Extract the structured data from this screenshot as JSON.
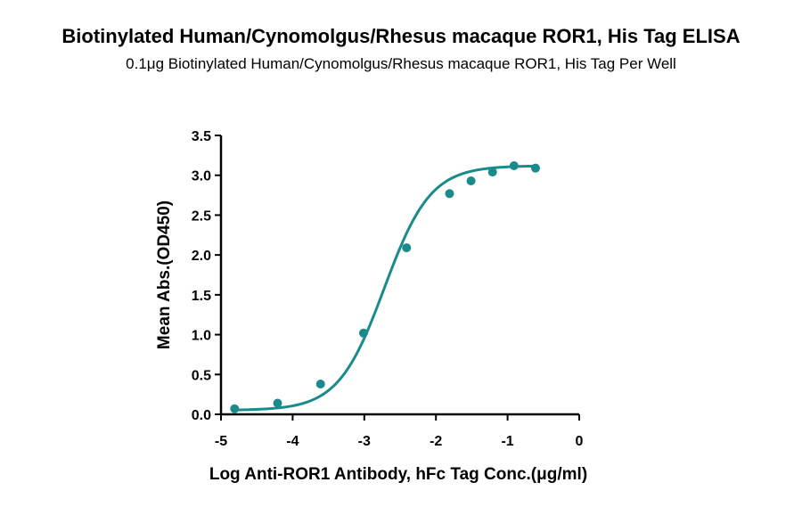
{
  "header": {
    "title": "Biotinylated Human/Cynomolgus/Rhesus macaque ROR1, His Tag ELISA",
    "subtitle": "0.1μg Biotinylated Human/Cynomolgus/Rhesus macaque ROR1, His Tag Per Well"
  },
  "chart_data": {
    "type": "scatter",
    "title": "Biotinylated Human/Cynomolgus/Rhesus macaque ROR1, His Tag ELISA",
    "subtitle": "0.1μg Biotinylated Human/Cynomolgus/Rhesus macaque ROR1, His Tag Per Well",
    "xlabel": "Log Anti-ROR1 Antibody, hFc  Tag Conc.(μg/ml)",
    "ylabel": "Mean Abs.(OD450)",
    "xlim": [
      -5,
      0
    ],
    "ylim": [
      0,
      3.5
    ],
    "x_ticks": [
      -5,
      -4,
      -3,
      -2,
      -1,
      0
    ],
    "x_tick_labels": [
      "-5",
      "-4",
      "-3",
      "-2",
      "-1",
      "0"
    ],
    "y_ticks": [
      0,
      0.5,
      1,
      1.5,
      2,
      2.5,
      3,
      3.5
    ],
    "y_tick_labels": [
      "0.0",
      "0.5",
      "1.0",
      "1.5",
      "2.0",
      "2.5",
      "3.0",
      "3.5"
    ],
    "series": [
      {
        "x": [
          -4.81,
          -4.21,
          -3.61,
          -3.01,
          -2.41,
          -1.81,
          -1.51,
          -1.21,
          -0.91,
          -0.61
        ],
        "y": [
          0.07,
          0.14,
          0.38,
          1.02,
          2.09,
          2.77,
          2.93,
          3.04,
          3.12,
          3.09
        ],
        "color": "#1a8a8a",
        "fit": "4PL sigmoidal curve"
      }
    ],
    "grid": false,
    "legend": "none"
  }
}
